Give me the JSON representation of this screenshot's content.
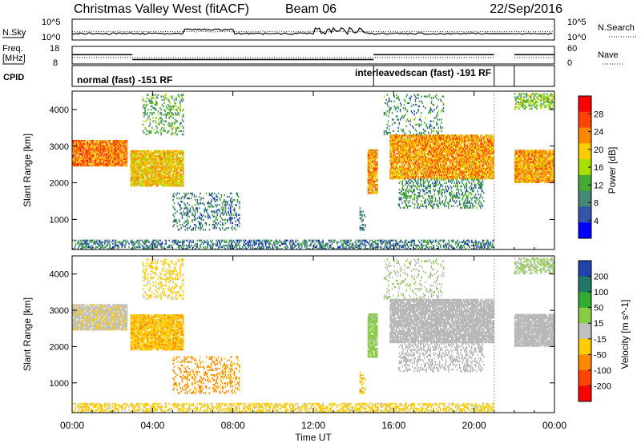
{
  "header": {
    "station": "Christmas Valley West (fitACF)",
    "beam": "Beam 06",
    "date": "22/Sep/2016"
  },
  "panels": {
    "nsky": {
      "label": "N.Sky",
      "ticks": [
        "10^5",
        "10^0"
      ]
    },
    "nsearch": {
      "label": "N.Search",
      "ticks": [
        "10^5",
        "10^0"
      ]
    },
    "freq": {
      "label_line1": "Freq.",
      "label_line2": "[MHz]",
      "ticks": [
        "18",
        "8"
      ]
    },
    "nave": {
      "label": "Nave",
      "ticks": [
        "60",
        "0"
      ]
    },
    "cpid": {
      "label": "CPID",
      "programs": [
        "normal (fast) -151 RF",
        "interleavedscan (fast) -191 RF"
      ]
    }
  },
  "xaxis": {
    "title": "Time UT",
    "tick_labels": [
      "00:00",
      "04:00",
      "08:00",
      "12:00",
      "16:00",
      "20:00",
      "00:00"
    ]
  },
  "power_panel": {
    "ylabel": "Slant Range [km]",
    "yticks": [
      "4000",
      "3000",
      "2000",
      "1000"
    ],
    "colorbar_label": "Power [dB]",
    "colorbar_ticks": [
      "28",
      "24",
      "20",
      "16",
      "12",
      "8",
      "4"
    ],
    "colors": [
      "#ff0000",
      "#ff4400",
      "#ff8800",
      "#ffcc00",
      "#aadd00",
      "#44aa33",
      "#448877",
      "#3355aa",
      "#0000ff"
    ]
  },
  "velocity_panel": {
    "ylabel": "Slant Range [km]",
    "yticks": [
      "4000",
      "3000",
      "2000",
      "1000"
    ],
    "colorbar_label": "Velocity [m s^-1]",
    "colorbar_ticks": [
      "200",
      "100",
      "50",
      "15",
      "-15",
      "-50",
      "-100",
      "-200"
    ],
    "colors": [
      "#2244aa",
      "#227766",
      "#33aa33",
      "#88cc44",
      "#c0c0c0",
      "#ffcc00",
      "#ff8800",
      "#ff4400",
      "#ff0000"
    ],
    "ground_scatter_color": "#b8b8b8"
  },
  "chart_data": {
    "type": "heatmap",
    "x_hours": [
      0,
      24
    ],
    "xlabel": "Time UT",
    "ylabel": "Slant Range [km]",
    "ylim_km": [
      180,
      4500
    ],
    "data_gap_hours": [
      21.0,
      22.0
    ],
    "power_range_db": [
      0,
      32
    ],
    "velocity_range_ms": [
      -250,
      250
    ],
    "cpid_changes_hours": [
      0,
      15.0
    ],
    "freq_segments": [
      {
        "start": 0,
        "end": 3.0,
        "freq_mhz": 13.3
      },
      {
        "start": 3.0,
        "end": 15.0,
        "freq_mhz": 10.5
      },
      {
        "start": 15.0,
        "end": 21.0,
        "freq_mhz": 13.3
      },
      {
        "start": 22.0,
        "end": 24,
        "freq_mhz": 13.3
      }
    ],
    "echo_regions": [
      {
        "t0": 0.0,
        "t1": 2.7,
        "r0": 2450,
        "r1": 3150,
        "kind": "ionospheric",
        "power": 24,
        "velocity": -5,
        "density": 0.9
      },
      {
        "t0": 2.9,
        "t1": 5.5,
        "r0": 1900,
        "r1": 2850,
        "kind": "ionospheric",
        "power": 20,
        "velocity": -40,
        "density": 0.85
      },
      {
        "t0": 3.5,
        "t1": 5.5,
        "r0": 3300,
        "r1": 4400,
        "kind": "ionospheric",
        "power": 12,
        "velocity": -30,
        "density": 0.25
      },
      {
        "t0": 5.0,
        "t1": 8.3,
        "r0": 700,
        "r1": 1700,
        "kind": "ionospheric",
        "power": 8,
        "velocity": -60,
        "density": 0.25
      },
      {
        "t0": 0.0,
        "t1": 21.0,
        "r0": 180,
        "r1": 450,
        "kind": "ionospheric",
        "power": 8,
        "velocity": -30,
        "density": 0.45
      },
      {
        "t0": 14.7,
        "t1": 15.2,
        "r0": 1700,
        "r1": 2900,
        "kind": "ionospheric",
        "power": 22,
        "velocity": 30,
        "density": 0.8
      },
      {
        "t0": 14.3,
        "t1": 14.6,
        "r0": 700,
        "r1": 1300,
        "kind": "ionospheric",
        "power": 8,
        "velocity": -40,
        "density": 0.3
      },
      {
        "t0": 15.8,
        "t1": 21.0,
        "r0": 2100,
        "r1": 3300,
        "kind": "ground",
        "power": 22,
        "velocity": 0,
        "density": 0.85
      },
      {
        "t0": 16.2,
        "t1": 20.5,
        "r0": 1300,
        "r1": 2100,
        "kind": "ground",
        "power": 10,
        "velocity": 0,
        "density": 0.35
      },
      {
        "t0": 15.5,
        "t1": 18.5,
        "r0": 3300,
        "r1": 4400,
        "kind": "ionospheric",
        "power": 10,
        "velocity": 10,
        "density": 0.15
      },
      {
        "t0": 22.0,
        "t1": 24.0,
        "r0": 2000,
        "r1": 2900,
        "kind": "ground",
        "power": 22,
        "velocity": 0,
        "density": 0.9
      },
      {
        "t0": 22.0,
        "t1": 24.0,
        "r0": 4000,
        "r1": 4450,
        "kind": "ionospheric",
        "power": 14,
        "velocity": 20,
        "density": 0.5
      }
    ]
  }
}
